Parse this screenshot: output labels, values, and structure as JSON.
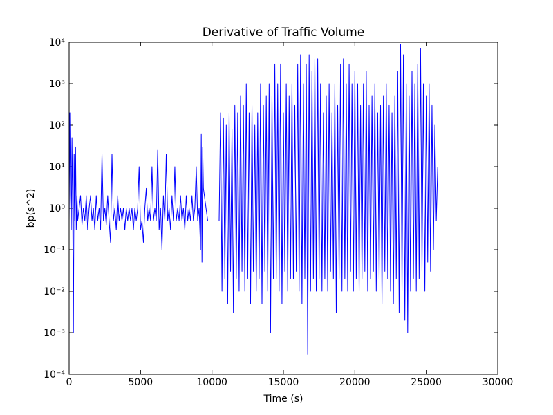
{
  "chart_data": {
    "type": "line",
    "title": "Derivative of Traffic Volume",
    "x_label": "Time (s)",
    "y_label": "bp(s^2)",
    "yscale": "log",
    "xlim": [
      0,
      30000
    ],
    "xticks": [
      0,
      5000,
      10000,
      15000,
      20000,
      25000,
      30000
    ],
    "ylim": [
      0.0001,
      10000
    ],
    "yticks": [
      {
        "value": 0.0001,
        "label": "10⁻⁴"
      },
      {
        "value": 0.001,
        "label": "10⁻³"
      },
      {
        "value": 0.01,
        "label": "10⁻²"
      },
      {
        "value": 0.1,
        "label": "10⁻¹"
      },
      {
        "value": 1,
        "label": "10⁰"
      },
      {
        "value": 10,
        "label": "10¹"
      },
      {
        "value": 100,
        "label": "10²"
      },
      {
        "value": 1000,
        "label": "10³"
      },
      {
        "value": 10000,
        "label": "10⁴"
      }
    ],
    "grid": false,
    "color": "#0000ff",
    "x": [
      0,
      50,
      100,
      150,
      200,
      250,
      300,
      350,
      400,
      450,
      500,
      550,
      600,
      700,
      800,
      900,
      1000,
      1100,
      1200,
      1300,
      1400,
      1500,
      1600,
      1700,
      1800,
      1900,
      2000,
      2100,
      2200,
      2300,
      2400,
      2500,
      2600,
      2700,
      2800,
      2900,
      3000,
      3100,
      3200,
      3300,
      3400,
      3500,
      3600,
      3700,
      3800,
      3900,
      4000,
      4100,
      4200,
      4300,
      4400,
      4500,
      4600,
      4700,
      4800,
      4900,
      5000,
      5100,
      5200,
      5300,
      5400,
      5500,
      5600,
      5700,
      5800,
      5900,
      6000,
      6100,
      6200,
      6300,
      6400,
      6500,
      6600,
      6700,
      6800,
      6900,
      7000,
      7100,
      7200,
      7300,
      7400,
      7500,
      7600,
      7700,
      7800,
      7900,
      8000,
      8100,
      8200,
      8300,
      8400,
      8500,
      8600,
      8700,
      8800,
      8900,
      9000,
      9100,
      9200,
      9250,
      9300,
      9350,
      9400,
      9700,
      10000,
      10500,
      10600,
      10700,
      10800,
      10900,
      11000,
      11100,
      11200,
      11300,
      11400,
      11500,
      11600,
      11700,
      11800,
      11900,
      12000,
      12100,
      12200,
      12300,
      12400,
      12500,
      12600,
      12700,
      12800,
      12900,
      13000,
      13100,
      13200,
      13300,
      13400,
      13500,
      13600,
      13700,
      13800,
      13900,
      14000,
      14100,
      14200,
      14300,
      14400,
      14500,
      14600,
      14700,
      14800,
      14900,
      15000,
      15100,
      15200,
      15300,
      15400,
      15500,
      15600,
      15700,
      15800,
      15900,
      16000,
      16100,
      16200,
      16300,
      16400,
      16500,
      16600,
      16700,
      16800,
      16900,
      17000,
      17100,
      17200,
      17300,
      17400,
      17500,
      17600,
      17700,
      17800,
      17900,
      18000,
      18100,
      18200,
      18300,
      18400,
      18500,
      18600,
      18700,
      18800,
      18900,
      19000,
      19100,
      19200,
      19300,
      19400,
      19500,
      19600,
      19700,
      19800,
      19900,
      20000,
      20100,
      20200,
      20300,
      20400,
      20500,
      20600,
      20700,
      20800,
      20900,
      21000,
      21100,
      21200,
      21300,
      21400,
      21500,
      21600,
      21700,
      21800,
      21900,
      22000,
      22100,
      22200,
      22300,
      22400,
      22500,
      22600,
      22700,
      22800,
      22900,
      23000,
      23100,
      23200,
      23300,
      23400,
      23500,
      23600,
      23700,
      23800,
      23900,
      24000,
      24100,
      24200,
      24300,
      24400,
      24500,
      24600,
      24700,
      24800,
      24900,
      25000,
      25100,
      25200,
      25300,
      25400,
      25500,
      25600,
      25700,
      25800
    ],
    "values": [
      0.5,
      200,
      2,
      0.3,
      50,
      1,
      0.001,
      20,
      0.5,
      30,
      0.3,
      2,
      0.5,
      1,
      2,
      0.4,
      1,
      0.5,
      2,
      0.3,
      1,
      2,
      0.5,
      1,
      0.3,
      2,
      0.5,
      1,
      0.3,
      20,
      0.5,
      1,
      0.4,
      2,
      0.5,
      0.15,
      20,
      0.5,
      1,
      0.3,
      2,
      0.5,
      1,
      0.5,
      1,
      0.3,
      1,
      0.5,
      1,
      0.5,
      1,
      0.3,
      1,
      0.5,
      1,
      10,
      0.3,
      0.5,
      0.15,
      1,
      3,
      0.5,
      1,
      0.5,
      10,
      0.5,
      1,
      0.5,
      25,
      0.3,
      1,
      0.1,
      2,
      0.5,
      20,
      0.5,
      1,
      0.3,
      2,
      0.5,
      10,
      0.5,
      1,
      0.5,
      2,
      0.5,
      1,
      0.3,
      2,
      0.5,
      1,
      0.5,
      2,
      0.5,
      1,
      10,
      0.5,
      1,
      0.1,
      60,
      0.05,
      30,
      3,
      0.5,
      null,
      0.5,
      200,
      0.01,
      150,
      0.02,
      100,
      0.005,
      200,
      0.03,
      80,
      0.003,
      300,
      0.02,
      200,
      0.01,
      500,
      0.03,
      300,
      0.01,
      1000,
      0.02,
      200,
      0.005,
      300,
      0.03,
      100,
      0.01,
      200,
      0.02,
      1000,
      0.005,
      300,
      0.03,
      500,
      0.01,
      1000,
      0.001,
      500,
      0.02,
      3000,
      0.02,
      1000,
      0.01,
      3000,
      0.005,
      200,
      0.03,
      1000,
      0.01,
      500,
      0.02,
      1000,
      0.02,
      300,
      0.03,
      3000,
      0.01,
      5000,
      0.005,
      1000,
      0.02,
      3000,
      0.0003,
      5000,
      0.01,
      2000,
      0.02,
      4000,
      0.01,
      4000,
      0.02,
      1000,
      0.01,
      200,
      0.02,
      500,
      0.01,
      1000,
      0.03,
      200,
      0.02,
      1000,
      0.003,
      300,
      0.02,
      3000,
      0.01,
      4000,
      0.02,
      1000,
      0.01,
      3000,
      0.03,
      1000,
      0.01,
      2000,
      0.02,
      1000,
      0.01,
      300,
      0.02,
      1000,
      0.03,
      2000,
      0.01,
      300,
      0.02,
      500,
      0.03,
      1000,
      0.01,
      200,
      0.02,
      300,
      0.005,
      500,
      0.03,
      1000,
      0.02,
      300,
      0.01,
      200,
      0.005,
      500,
      0.02,
      2000,
      0.003,
      9000,
      0.01,
      5000,
      0.002,
      1000,
      0.001,
      500,
      0.01,
      2000,
      0.02,
      1000,
      0.01,
      3000,
      0.02,
      7000,
      0.03,
      1000,
      0.01,
      500,
      0.05,
      1000,
      0.03,
      300,
      0.1,
      100,
      0.5,
      10
    ]
  }
}
